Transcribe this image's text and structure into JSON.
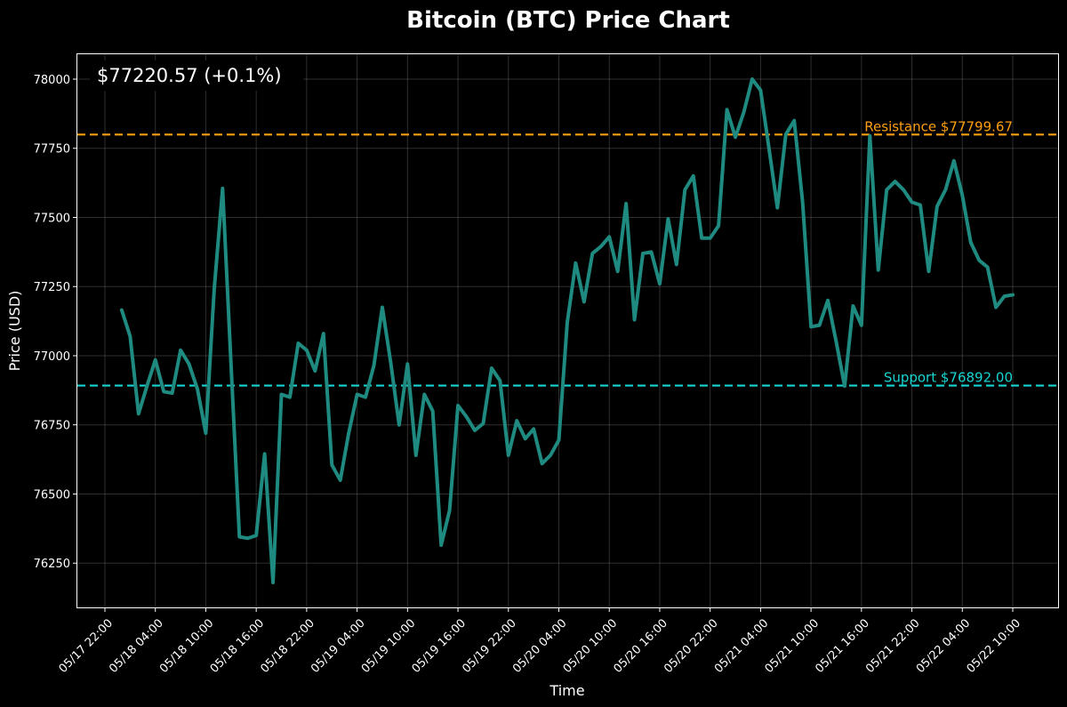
{
  "chart_data": {
    "type": "line",
    "title": "Bitcoin (BTC) Price Chart",
    "xlabel": "Time",
    "ylabel": "Price (USD)",
    "price_display": "$77220.57 (+0.1%)",
    "x_tick_labels": [
      "05/17 22:00",
      "05/18 04:00",
      "05/18 10:00",
      "05/18 16:00",
      "05/18 22:00",
      "05/19 04:00",
      "05/19 10:00",
      "05/19 16:00",
      "05/19 22:00",
      "05/20 04:00",
      "05/20 10:00",
      "05/20 16:00",
      "05/20 22:00",
      "05/21 04:00",
      "05/21 10:00",
      "05/21 16:00",
      "05/21 22:00",
      "05/22 04:00",
      "05/22 10:00"
    ],
    "y_ticks": [
      76250,
      76500,
      76750,
      77000,
      77250,
      77500,
      77750,
      78000
    ],
    "ylim": [
      76090,
      78090
    ],
    "x_start": "05/17 22:00",
    "x_end": "05/22 10:00",
    "grid": true,
    "series_color": "#1f8a80",
    "x_labels": [
      "05/18 00:00",
      "05/18 01:00",
      "05/18 02:00",
      "05/18 03:00",
      "05/18 04:00",
      "05/18 05:00",
      "05/18 06:00",
      "05/18 07:00",
      "05/18 08:00",
      "05/18 09:00",
      "05/18 10:00",
      "05/18 11:00",
      "05/18 12:00",
      "05/18 13:00",
      "05/18 14:00",
      "05/18 15:00",
      "05/18 16:00",
      "05/18 17:00",
      "05/18 18:00",
      "05/18 19:00",
      "05/18 20:00",
      "05/18 21:00",
      "05/18 22:00",
      "05/18 23:00",
      "05/19 00:00",
      "05/19 01:00",
      "05/19 02:00",
      "05/19 03:00",
      "05/19 04:00",
      "05/19 05:00",
      "05/19 06:00",
      "05/19 07:00",
      "05/19 08:00",
      "05/19 09:00",
      "05/19 10:00",
      "05/19 11:00",
      "05/19 12:00",
      "05/19 13:00",
      "05/19 14:00",
      "05/19 15:00",
      "05/19 16:00",
      "05/19 17:00",
      "05/19 18:00",
      "05/19 19:00",
      "05/19 20:00",
      "05/19 21:00",
      "05/19 22:00",
      "05/19 23:00",
      "05/20 00:00",
      "05/20 01:00",
      "05/20 02:00",
      "05/20 03:00",
      "05/20 04:00",
      "05/20 05:00",
      "05/20 06:00",
      "05/20 07:00",
      "05/20 08:00",
      "05/20 09:00",
      "05/20 10:00",
      "05/20 11:00",
      "05/20 12:00",
      "05/20 13:00",
      "05/20 14:00",
      "05/20 15:00",
      "05/20 16:00",
      "05/20 17:00",
      "05/20 18:00",
      "05/20 19:00",
      "05/20 20:00",
      "05/20 21:00",
      "05/20 22:00",
      "05/20 23:00",
      "05/21 00:00",
      "05/21 01:00",
      "05/21 02:00",
      "05/21 03:00",
      "05/21 04:00",
      "05/21 05:00",
      "05/21 06:00",
      "05/21 07:00",
      "05/21 08:00",
      "05/21 09:00",
      "05/21 10:00",
      "05/21 11:00",
      "05/21 12:00",
      "05/21 13:00",
      "05/21 14:00",
      "05/21 15:00",
      "05/21 16:00",
      "05/21 17:00",
      "05/21 18:00",
      "05/21 19:00",
      "05/21 20:00",
      "05/21 21:00",
      "05/21 22:00",
      "05/21 23:00",
      "05/22 00:00",
      "05/22 01:00",
      "05/22 02:00",
      "05/22 03:00",
      "05/22 04:00",
      "05/22 05:00",
      "05/22 06:00",
      "05/22 07:00",
      "05/22 08:00",
      "05/22 09:00",
      "05/22 10:00"
    ],
    "values": [
      77165,
      77070,
      76790,
      76890,
      76985,
      76870,
      76865,
      77020,
      76970,
      76880,
      76720,
      77240,
      77605,
      76970,
      76345,
      76340,
      76350,
      76645,
      76180,
      76860,
      76850,
      77045,
      77020,
      76945,
      77080,
      76605,
      76550,
      76720,
      76860,
      76850,
      76965,
      77175,
      76975,
      76750,
      76970,
      76640,
      76860,
      76800,
      76315,
      76440,
      76820,
      76780,
      76730,
      76755,
      76955,
      76910,
      76640,
      76765,
      76700,
      76735,
      76610,
      76640,
      76695,
      77120,
      77335,
      77195,
      77370,
      77395,
      77430,
      77305,
      77550,
      77130,
      77370,
      77375,
      77260,
      77495,
      77330,
      77600,
      77650,
      77425,
      77425,
      77470,
      77890,
      77790,
      77880,
      78000,
      77960,
      77750,
      77535,
      77800,
      77850,
      77555,
      77105,
      77110,
      77200,
      77050,
      76890,
      77180,
      77110,
      77795,
      77310,
      77600,
      77630,
      77600,
      77555,
      77545,
      77305,
      77540,
      77600,
      77705,
      77580,
      77410,
      77345,
      77320,
      77175,
      77215,
      77220
    ],
    "series": [
      {
        "values_ref": "values"
      }
    ],
    "lines": [
      {
        "label": "Resistance $77799.67",
        "value": 77799.67,
        "color": "#ff9f0f"
      },
      {
        "label": "Support $76892.00",
        "value": 76892.0,
        "color": "#17d4d4"
      }
    ]
  }
}
